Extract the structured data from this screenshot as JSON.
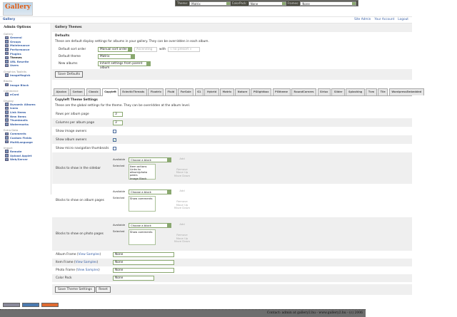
{
  "topbar": {
    "theme_label": "Theme:",
    "theme_value": "Matrix",
    "colorpack_label": "ColorPack:",
    "colorpack_value": "None",
    "frames_label": "Frames:",
    "frames_value": "None"
  },
  "logo_text": "Gallery",
  "breadcrumb": "Gallery",
  "toplinks": [
    "Site Admin",
    "Your Account",
    "Logout"
  ],
  "sidebar": {
    "title": "Admin Options",
    "groups": [
      {
        "name": "Gallery",
        "items": [
          "General",
          "Groups",
          "Maintenance",
          "Performance",
          "Plugins",
          "Themes",
          "URL Rewrite",
          "Users"
        ]
      },
      {
        "name": "Graphics Toolkits",
        "items": [
          "ImageMagick"
        ]
      },
      {
        "name": "Blocks",
        "items": [
          "Image Block"
        ]
      },
      {
        "name": "Commerce",
        "items": [
          "eCard"
        ]
      },
      {
        "name": "Display",
        "items": [
          "Dynamic Albums",
          "Icons",
          "Link Items",
          "New Items",
          "Thumbnails",
          "Watermarks"
        ]
      },
      {
        "name": "Extra Data",
        "items": [
          "Comments",
          "Custom Fields",
          "MultiLanguage"
        ]
      },
      {
        "name": "Import",
        "items": [
          "Remote",
          "Upload Applet",
          "Web/Server"
        ]
      }
    ],
    "current": "Themes"
  },
  "main": {
    "title": "Gallery Themes",
    "defaults": {
      "heading": "Defaults",
      "description": "These are default display settings for albums in your gallery. They can be overridden in each album.",
      "sort_label": "Default sort order",
      "sort_value": "Manual sort order",
      "direction_value": "Ascending",
      "with_label": "with",
      "presort_value": "« no presort »",
      "theme_label": "Default theme",
      "theme_value": "Matrix",
      "new_albums_label": "New albums",
      "new_albums_value": "Inherit settings from parent album",
      "save_button": "Save Defaults"
    },
    "tabs": [
      "Ajaxian",
      "Carbon",
      "Classic",
      "Copyleft",
      "EclecticThreads",
      "Floatrix",
      "Fluid",
      "ForSale",
      "G1",
      "Hybrid",
      "Matrix",
      "Nature",
      "PGlightbox",
      "PGtheme",
      "RoundCorners",
      "Siriux",
      "Slider",
      "Splashing",
      "Tvm",
      "Tile",
      "WordpressEmbedded"
    ],
    "active_tab": "Copyleft",
    "settings": {
      "heading": "Copyleft Theme Settings",
      "description": "These are the global settings for the theme. They can be overridden at the album level.",
      "rows_label": "Rows per album page",
      "rows_value": "3",
      "cols_label": "Columns per album page",
      "cols_value": "3",
      "image_owners_label": "Show image owners",
      "image_owners": false,
      "album_owners_label": "Show album owners",
      "album_owners": true,
      "micro_nav_label": "Show micro navigation thumbnails",
      "micro_nav": false,
      "available_label": "Available",
      "selected_label": "Selected",
      "choose": "Choose a block",
      "add": "Add",
      "remove": "Remove",
      "move_up": "Move Up",
      "move_down": "Move Down",
      "sidebar_blocks": {
        "label": "Blocks to show in the sidebar",
        "selected": "Item actions\nLinks to album/photo peers\nImage Block"
      },
      "album_blocks": {
        "label": "Blocks to show on album pages",
        "selected": "Show comments"
      },
      "photo_blocks": {
        "label": "Blocks to show on photo pages",
        "selected": "Show comments"
      },
      "view_samples": "View Samples",
      "album_frame_label": "Album Frame",
      "album_frame_value": "None",
      "item_frame_label": "Item Frame",
      "item_frame_value": "None",
      "photo_frame_label": "Photo Frame",
      "photo_frame_value": "None",
      "colorpack_label": "Color Pack",
      "colorpack_value": "None",
      "save_button": "Save Theme Settings",
      "reset_button": "Reset"
    }
  },
  "footer": "Contact: admin at gallery2.hu - www.gallery2.hu - (c) 2006"
}
